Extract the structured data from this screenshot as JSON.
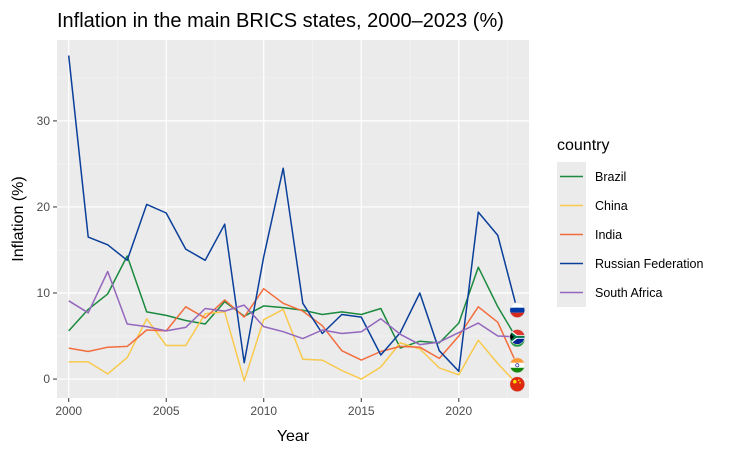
{
  "chart_data": {
    "type": "line",
    "title": "Inflation in the main BRICS states, 2000–2023 (%)",
    "xlabel": "Year",
    "ylabel": "Inflation (%)",
    "xlim": [
      1999.4,
      2023.6
    ],
    "ylim": [
      -2.2,
      39.4
    ],
    "x_ticks": [
      2000,
      2005,
      2010,
      2015,
      2020
    ],
    "y_ticks": [
      0,
      10,
      20,
      30
    ],
    "grid": true,
    "legend": {
      "title": "country",
      "position": "right"
    },
    "x": [
      2000,
      2001,
      2002,
      2003,
      2004,
      2005,
      2006,
      2007,
      2008,
      2009,
      2010,
      2011,
      2012,
      2013,
      2014,
      2015,
      2016,
      2017,
      2018,
      2019,
      2020,
      2021,
      2022,
      2023
    ],
    "series": [
      {
        "name": "Brazil",
        "color": "#1b8a3e",
        "flag": "brazil-flag-icon",
        "values": [
          5.6,
          8.1,
          9.9,
          14.3,
          7.8,
          7.4,
          6.8,
          6.4,
          9.0,
          7.3,
          8.5,
          8.3,
          8.0,
          7.5,
          7.8,
          7.5,
          8.2,
          3.6,
          4.4,
          4.2,
          6.5,
          13.0,
          8.4,
          4.6
        ]
      },
      {
        "name": "China",
        "color": "#f8c94c",
        "flag": "china-flag-icon",
        "values": [
          2.0,
          2.0,
          0.6,
          2.5,
          7.0,
          3.9,
          3.9,
          7.6,
          7.8,
          -0.2,
          6.9,
          8.1,
          2.3,
          2.2,
          1.0,
          0.0,
          1.4,
          4.2,
          3.5,
          1.3,
          0.5,
          4.5,
          1.8,
          -0.6
        ]
      },
      {
        "name": "India",
        "color": "#f26d3d",
        "flag": "india-flag-icon",
        "values": [
          3.6,
          3.2,
          3.7,
          3.8,
          5.7,
          5.6,
          8.4,
          7.1,
          9.2,
          7.2,
          10.5,
          8.8,
          7.9,
          6.2,
          3.3,
          2.2,
          3.2,
          3.8,
          3.7,
          2.4,
          5.0,
          8.4,
          6.6,
          1.6
        ]
      },
      {
        "name": "Russian Federation",
        "color": "#0a3f9a",
        "flag": "russia-flag-icon",
        "values": [
          37.6,
          16.5,
          15.6,
          13.8,
          20.3,
          19.3,
          15.1,
          13.8,
          18.0,
          1.9,
          14.2,
          24.5,
          8.8,
          5.3,
          7.5,
          7.2,
          2.8,
          5.4,
          10.0,
          3.3,
          0.9,
          19.4,
          16.7,
          8.0
        ]
      },
      {
        "name": "South Africa",
        "color": "#9467bd",
        "flag": "south-africa-flag-icon",
        "values": [
          9.1,
          7.7,
          12.5,
          6.4,
          6.1,
          5.6,
          6.0,
          8.2,
          7.9,
          8.6,
          6.1,
          5.5,
          4.7,
          5.7,
          5.3,
          5.5,
          7.0,
          5.2,
          4.0,
          4.3,
          5.4,
          6.5,
          5.0,
          4.9
        ]
      }
    ]
  }
}
